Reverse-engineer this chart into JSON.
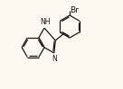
{
  "background_color": "#fdf8f0",
  "line_color": "#1a1a1a",
  "line_width": 0.9,
  "dbo": 0.012,
  "text_color": "#1a1a1a",
  "br_label": "Br",
  "nh_label": "NH",
  "n_label": "N",
  "font_size_n": 5.5,
  "font_size_br": 6.5,
  "figsize": [
    1.36,
    0.99
  ],
  "dpi": 100,
  "xlim": [
    0.0,
    1.0
  ],
  "ylim": [
    0.05,
    0.95
  ]
}
